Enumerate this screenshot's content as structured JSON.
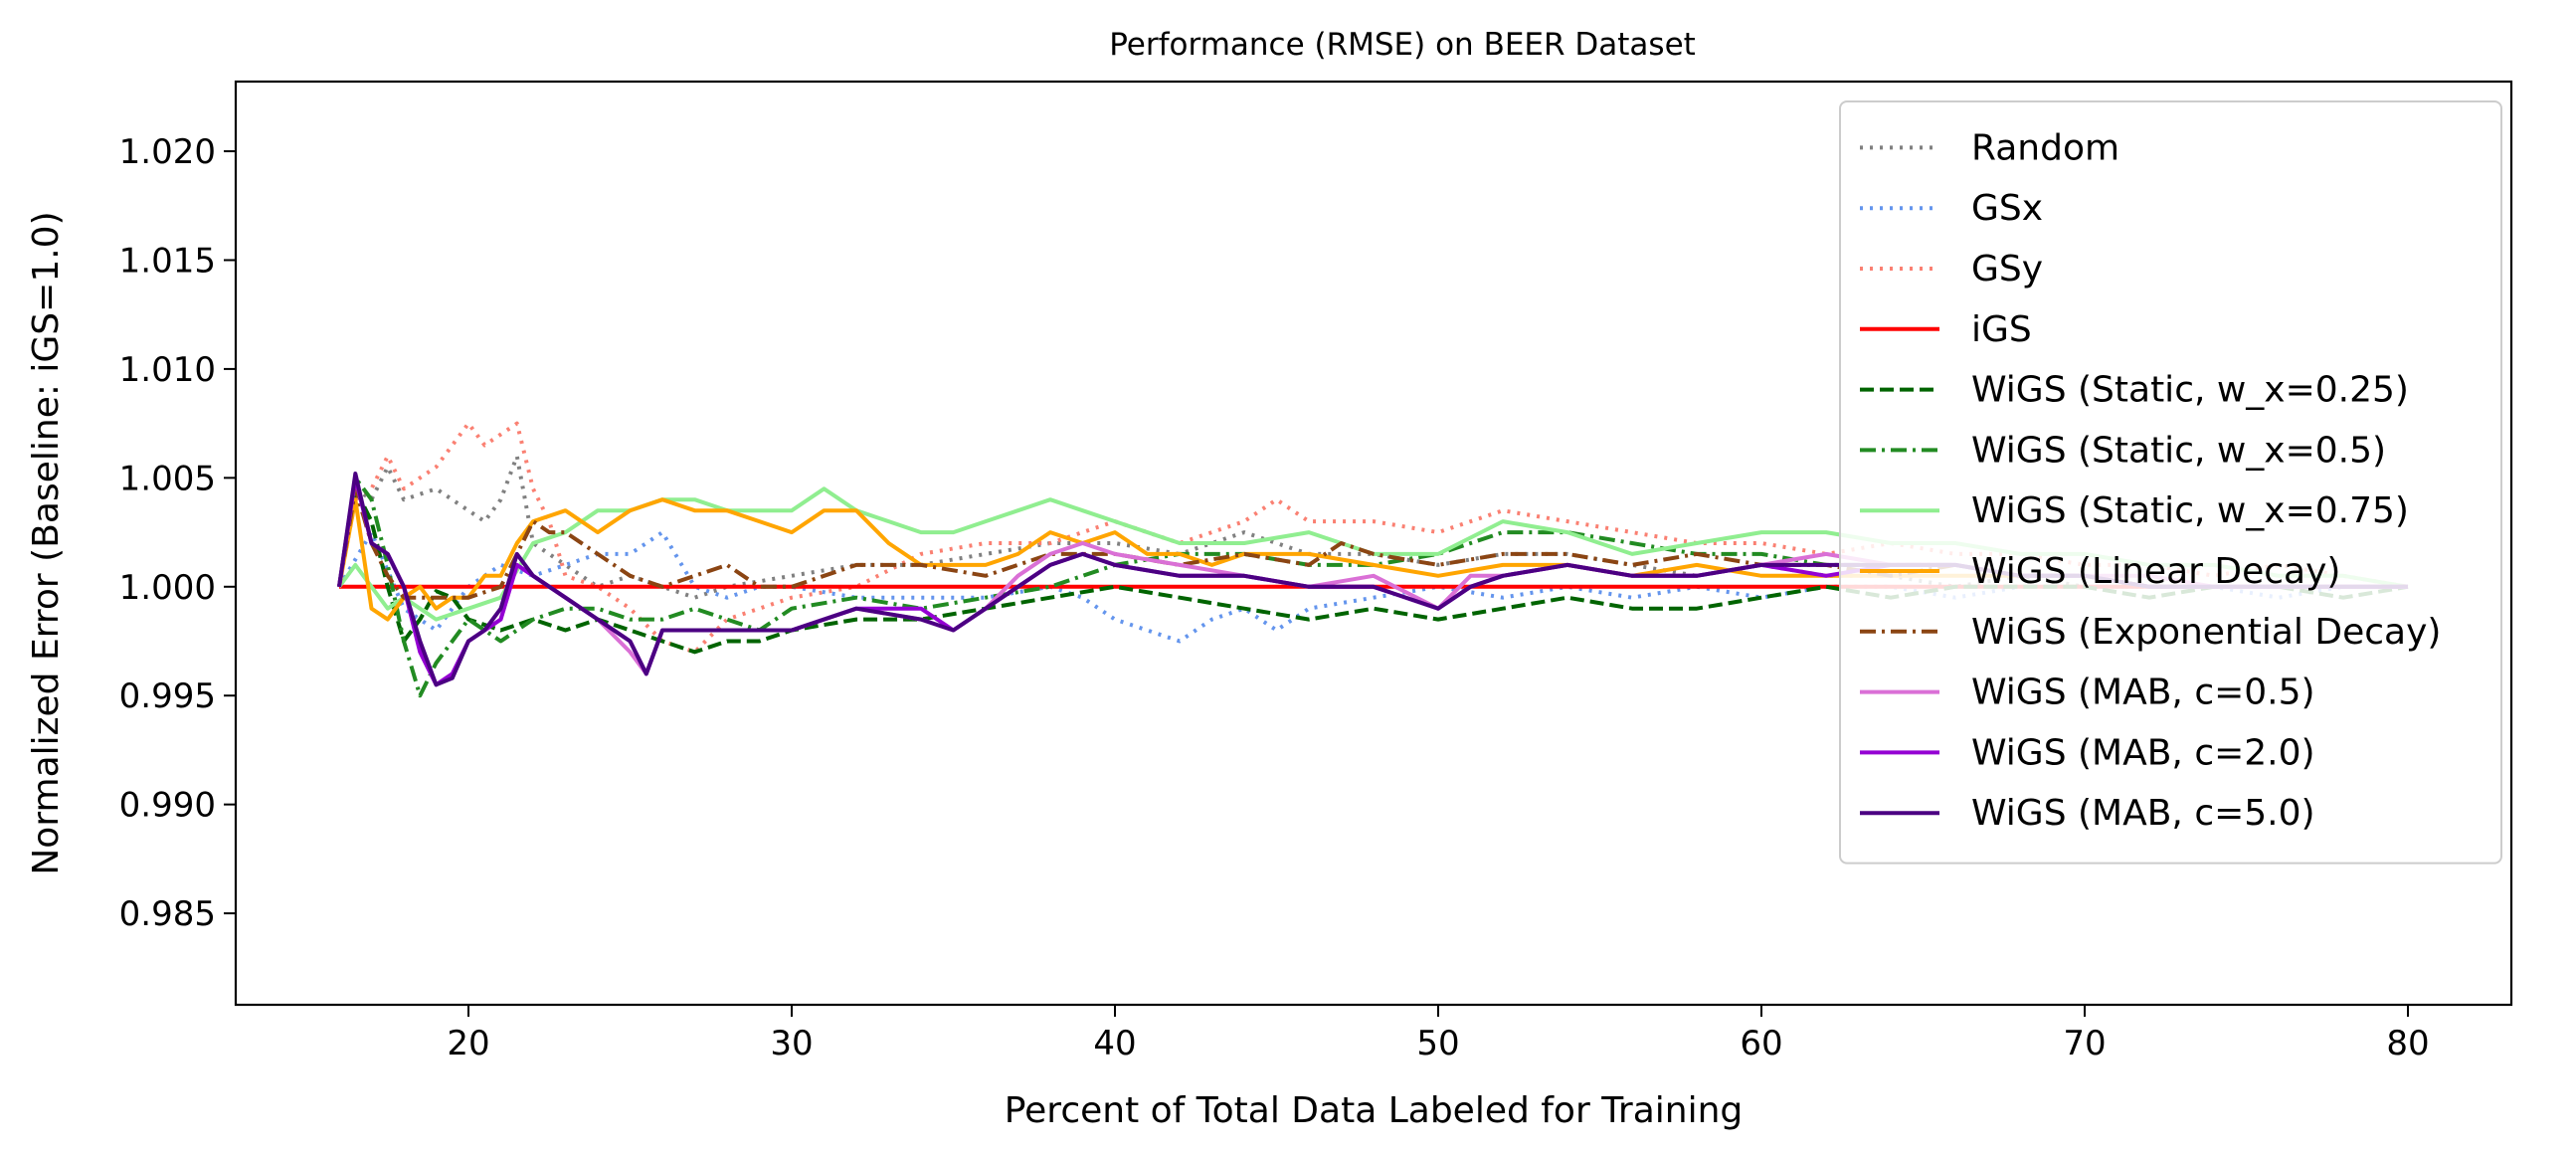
{
  "chart_data": {
    "type": "line",
    "title": "Performance (RMSE) on BEER Dataset",
    "xlabel": "Percent of Total Data Labeled for Training",
    "ylabel": "Normalized Error (Baseline: iGS=1.0)",
    "xlim": [
      12.8,
      83.2
    ],
    "ylim": [
      0.9808,
      1.0232
    ],
    "xticks": [
      20,
      30,
      40,
      50,
      60,
      70,
      80
    ],
    "xtick_labels": [
      "20",
      "30",
      "40",
      "50",
      "60",
      "70",
      "80"
    ],
    "yticks": [
      0.985,
      0.99,
      0.995,
      1.0,
      1.005,
      1.01,
      1.015,
      1.02
    ],
    "ytick_labels": [
      "0.985",
      "0.990",
      "0.995",
      "1.000",
      "1.005",
      "1.010",
      "1.015",
      "1.020"
    ],
    "grid": false,
    "legend_position": "upper-right",
    "series": [
      {
        "name": "Random",
        "color": "#808080",
        "dash": "dotted",
        "x": [
          16,
          16.5,
          17,
          17.5,
          18,
          19,
          20,
          20.5,
          21,
          21.5,
          22,
          23,
          24,
          25,
          26,
          27,
          28,
          30,
          32,
          34,
          36,
          38,
          40,
          42,
          44,
          46,
          48,
          50,
          52,
          54,
          56,
          58,
          60,
          62,
          64,
          66,
          68,
          70,
          72,
          74,
          76,
          78,
          80
        ],
        "y": [
          1.0,
          1.0045,
          1.004,
          1.0055,
          1.004,
          1.0045,
          1.0035,
          1.003,
          1.004,
          1.006,
          1.002,
          1.001,
          1.0,
          1.0005,
          1.0,
          0.9995,
          1.0,
          1.0005,
          1.001,
          1.001,
          1.0015,
          1.002,
          1.002,
          1.0015,
          1.0025,
          1.0015,
          1.0015,
          1.001,
          1.0015,
          1.0015,
          1.001,
          1.0005,
          1.001,
          1.0005,
          1.0005,
          1.0,
          1.0005,
          1.0,
          1.0,
          1.0,
          1.0,
          1.0,
          1.0
        ]
      },
      {
        "name": "GSx",
        "color": "#6495ED",
        "dash": "dotted",
        "x": [
          16,
          17,
          18,
          19,
          20,
          21,
          22,
          23,
          24,
          25,
          26,
          27,
          28,
          29,
          30,
          32,
          34,
          36,
          38,
          39,
          40,
          41,
          42,
          43,
          44,
          45,
          46,
          48,
          50,
          52,
          54,
          56,
          58,
          60,
          62,
          64,
          66,
          68,
          70,
          72,
          74,
          76,
          78,
          80
        ],
        "y": [
          1.0,
          1.0025,
          0.999,
          0.998,
          1.0,
          1.001,
          1.0005,
          1.001,
          1.0015,
          1.0015,
          1.0025,
          1.0,
          0.9995,
          1.0,
          1.0,
          0.9995,
          0.9995,
          0.9995,
          1.0,
          0.9995,
          0.9985,
          0.998,
          0.9975,
          0.9985,
          0.999,
          0.998,
          0.999,
          0.9995,
          1.0,
          0.9995,
          1.0,
          0.9995,
          1.0,
          0.9995,
          1.0,
          1.0,
          0.9995,
          1.0,
          1.0,
          1.0,
          1.0,
          0.9995,
          1.0,
          1.0
        ]
      },
      {
        "name": "GSy",
        "color": "#FA8072",
        "dash": "dotted",
        "x": [
          16,
          16.5,
          17,
          17.5,
          18,
          19,
          19.5,
          20,
          20.5,
          21,
          21.5,
          22,
          22.5,
          23,
          24,
          25,
          26,
          27,
          28,
          30,
          32,
          34,
          36,
          38,
          40,
          42,
          44,
          45,
          46,
          48,
          50,
          52,
          54,
          56,
          58,
          60,
          62,
          64,
          66,
          68,
          70,
          72,
          74,
          76,
          78,
          80
        ],
        "y": [
          1.0,
          1.004,
          1.0045,
          1.006,
          1.0045,
          1.0055,
          1.0065,
          1.0075,
          1.0065,
          1.007,
          1.0075,
          1.0045,
          1.003,
          1.0005,
          1.0,
          0.999,
          0.9975,
          0.997,
          0.9985,
          0.9995,
          1.0,
          1.0015,
          1.002,
          1.002,
          1.003,
          1.002,
          1.003,
          1.004,
          1.003,
          1.003,
          1.0025,
          1.0035,
          1.003,
          1.0025,
          1.002,
          1.002,
          1.0015,
          1.002,
          1.0015,
          1.0015,
          1.001,
          1.001,
          1.0005,
          1.001,
          1.0005,
          1.0
        ]
      },
      {
        "name": "iGS",
        "color": "#FF0000",
        "dash": "solid",
        "x": [
          16,
          80
        ],
        "y": [
          1.0,
          1.0
        ]
      },
      {
        "name": "WiGS (Static, w_x=0.25)",
        "color": "#006400",
        "dash": "dashed",
        "x": [
          16,
          16.5,
          17,
          17.5,
          18,
          18.5,
          19,
          19.5,
          20,
          21,
          22,
          23,
          24,
          25,
          26,
          27,
          28,
          29,
          30,
          32,
          34,
          36,
          38,
          40,
          42,
          44,
          46,
          48,
          50,
          52,
          54,
          56,
          58,
          60,
          62,
          64,
          66,
          68,
          70,
          72,
          74,
          76,
          78,
          80
        ],
        "y": [
          1.0,
          1.0045,
          1.003,
          1.0,
          0.9975,
          0.9985,
          0.9998,
          0.9995,
          0.9985,
          0.998,
          0.9985,
          0.998,
          0.9985,
          0.998,
          0.9975,
          0.997,
          0.9975,
          0.9975,
          0.998,
          0.9985,
          0.9985,
          0.999,
          0.9995,
          1.0,
          0.9995,
          0.999,
          0.9985,
          0.999,
          0.9985,
          0.999,
          0.9995,
          0.999,
          0.999,
          0.9995,
          1.0,
          0.9995,
          1.0,
          1.0,
          1.0,
          0.9995,
          1.0,
          1.0,
          0.9995,
          1.0
        ]
      },
      {
        "name": "WiGS (Static, w_x=0.5)",
        "color": "#228B22",
        "dash": "dashdot",
        "x": [
          16,
          16.5,
          17,
          17.5,
          18,
          18.5,
          19,
          20,
          21,
          22,
          23,
          24,
          25,
          26,
          27,
          28,
          29,
          30,
          32,
          34,
          36,
          38,
          40,
          42,
          44,
          46,
          48,
          50,
          52,
          54,
          56,
          58,
          60,
          62,
          64,
          66,
          68,
          70,
          72,
          74,
          76,
          78,
          80
        ],
        "y": [
          1.0,
          1.005,
          1.004,
          1.001,
          0.9975,
          0.995,
          0.9965,
          0.9985,
          0.9975,
          0.9985,
          0.999,
          0.999,
          0.9985,
          0.9985,
          0.999,
          0.9985,
          0.998,
          0.999,
          0.9995,
          0.999,
          0.9995,
          1.0,
          1.001,
          1.0015,
          1.0015,
          1.001,
          1.001,
          1.0015,
          1.0025,
          1.0025,
          1.002,
          1.0015,
          1.0015,
          1.001,
          1.001,
          1.001,
          1.0005,
          1.0005,
          1.0,
          1.0,
          1.0,
          1.0,
          1.0
        ]
      },
      {
        "name": "WiGS (Static, w_x=0.75)",
        "color": "#90EE90",
        "dash": "solid",
        "x": [
          16,
          16.5,
          17,
          17.5,
          18,
          19,
          20,
          21,
          22,
          23,
          24,
          25,
          26,
          27,
          28,
          29,
          30,
          31,
          32,
          33,
          34,
          35,
          36,
          37,
          38,
          39,
          40,
          42,
          44,
          46,
          48,
          50,
          52,
          54,
          56,
          58,
          60,
          62,
          64,
          66,
          68,
          70,
          72,
          74,
          76,
          78,
          80
        ],
        "y": [
          1.0,
          1.001,
          1.0,
          0.999,
          0.9995,
          0.9985,
          0.999,
          0.9995,
          1.002,
          1.0025,
          1.0035,
          1.0035,
          1.004,
          1.004,
          1.0035,
          1.0035,
          1.0035,
          1.0045,
          1.0035,
          1.003,
          1.0025,
          1.0025,
          1.003,
          1.0035,
          1.004,
          1.0035,
          1.003,
          1.002,
          1.002,
          1.0025,
          1.0015,
          1.0015,
          1.003,
          1.0025,
          1.0015,
          1.002,
          1.0025,
          1.0025,
          1.002,
          1.002,
          1.0015,
          1.0015,
          1.001,
          1.001,
          1.0005,
          1.0005,
          1.0
        ]
      },
      {
        "name": "WiGS (Linear Decay)",
        "color": "#FFA500",
        "dash": "solid",
        "x": [
          16,
          16.5,
          17,
          17.5,
          18,
          18.5,
          19,
          19.5,
          20,
          20.5,
          21,
          21.5,
          22,
          23,
          24,
          25,
          26,
          27,
          28,
          29,
          30,
          31,
          32,
          33,
          34,
          35,
          36,
          37,
          38,
          39,
          40,
          41,
          42,
          43,
          44,
          45,
          46,
          48,
          50,
          52,
          54,
          56,
          58,
          60,
          62,
          64,
          66,
          68,
          70,
          72,
          74,
          76,
          78,
          80
        ],
        "y": [
          1.0,
          1.004,
          0.999,
          0.9985,
          0.9995,
          1.0,
          0.999,
          0.9995,
          0.9995,
          1.0005,
          1.0005,
          1.002,
          1.003,
          1.0035,
          1.0025,
          1.0035,
          1.004,
          1.0035,
          1.0035,
          1.003,
          1.0025,
          1.0035,
          1.0035,
          1.002,
          1.001,
          1.001,
          1.001,
          1.0015,
          1.0025,
          1.002,
          1.0025,
          1.0015,
          1.0015,
          1.001,
          1.0015,
          1.0015,
          1.0015,
          1.001,
          1.0005,
          1.001,
          1.001,
          1.0005,
          1.001,
          1.0005,
          1.0005,
          1.0005,
          1.0005,
          1.0005,
          1.0005,
          1.0,
          1.0,
          1.0,
          1.0,
          1.0
        ]
      },
      {
        "name": "WiGS (Exponential Decay)",
        "color": "#8B4513",
        "dash": "dashdot",
        "x": [
          16,
          16.5,
          17,
          17.5,
          18,
          19,
          20,
          21,
          22,
          22.5,
          23,
          24,
          25,
          26,
          27,
          28,
          29,
          30,
          32,
          34,
          36,
          38,
          40,
          42,
          44,
          46,
          47,
          48,
          50,
          52,
          54,
          56,
          58,
          60,
          62,
          64,
          66,
          68,
          70,
          72,
          74,
          76,
          78,
          80
        ],
        "y": [
          1.0,
          1.0045,
          1.002,
          1.0005,
          0.9995,
          0.9995,
          0.9995,
          1.0,
          1.003,
          1.0025,
          1.0025,
          1.0015,
          1.0005,
          1.0,
          1.0005,
          1.001,
          1.0,
          1.0,
          1.001,
          1.001,
          1.0005,
          1.0015,
          1.0015,
          1.001,
          1.0015,
          1.001,
          1.002,
          1.0015,
          1.001,
          1.0015,
          1.0015,
          1.001,
          1.0015,
          1.001,
          1.001,
          1.0005,
          1.001,
          1.0005,
          1.0005,
          1.0,
          1.0,
          1.0,
          1.0,
          1.0
        ]
      },
      {
        "name": "WiGS (MAB, c=0.5)",
        "color": "#DA70D6",
        "dash": "solid",
        "x": [
          16,
          16.5,
          17,
          17.5,
          18,
          18.5,
          19,
          19.5,
          20,
          21,
          21.5,
          22,
          23,
          24,
          25,
          25.5,
          26,
          27,
          28,
          29,
          30,
          32,
          34,
          35,
          36,
          37,
          38,
          39,
          40,
          42,
          44,
          46,
          48,
          50,
          51,
          52,
          54,
          56,
          58,
          60,
          62,
          64,
          66,
          68,
          70,
          72,
          74,
          76,
          78,
          80
        ],
        "y": [
          1.0,
          1.005,
          1.002,
          1.0015,
          1.0,
          0.997,
          0.9955,
          0.996,
          0.9975,
          0.9985,
          1.001,
          1.0005,
          0.9995,
          0.9985,
          0.997,
          0.996,
          0.998,
          0.998,
          0.998,
          0.998,
          0.998,
          0.999,
          0.9985,
          0.998,
          0.999,
          1.0005,
          1.0015,
          1.002,
          1.0015,
          1.001,
          1.0005,
          1.0,
          1.0005,
          0.999,
          1.0005,
          1.0005,
          1.001,
          1.0005,
          1.0005,
          1.001,
          1.0015,
          1.001,
          1.001,
          1.0005,
          1.0005,
          1.0005,
          1.0,
          1.0,
          1.0,
          1.0
        ]
      },
      {
        "name": "WiGS (MAB, c=2.0)",
        "color": "#9400D3",
        "dash": "solid",
        "x": [
          16,
          16.5,
          17,
          17.5,
          18,
          18.5,
          19,
          19.5,
          20,
          21,
          21.5,
          22,
          23,
          24,
          25,
          25.5,
          26,
          27,
          28,
          29,
          30,
          32,
          34,
          35,
          36,
          37,
          38,
          39,
          40,
          42,
          44,
          46,
          48,
          50,
          51,
          52,
          54,
          56,
          58,
          60,
          62,
          64,
          66,
          68,
          70,
          72,
          74,
          76,
          78,
          80
        ],
        "y": [
          1.0,
          1.005,
          1.002,
          1.0015,
          1.0,
          0.997,
          0.9955,
          0.996,
          0.9975,
          0.9985,
          1.001,
          1.0005,
          0.9995,
          0.9985,
          0.9975,
          0.996,
          0.998,
          0.998,
          0.998,
          0.998,
          0.998,
          0.999,
          0.999,
          0.998,
          0.999,
          1.0,
          1.001,
          1.0015,
          1.001,
          1.0005,
          1.0005,
          1.0,
          1.0,
          0.999,
          1.0,
          1.0005,
          1.001,
          1.0005,
          1.0005,
          1.001,
          1.0005,
          1.001,
          1.001,
          1.0005,
          1.0005,
          1.0,
          1.0,
          1.0,
          1.0,
          1.0
        ]
      },
      {
        "name": "WiGS (MAB, c=5.0)",
        "color": "#4B0082",
        "dash": "solid",
        "x": [
          16,
          16.5,
          17,
          17.5,
          18,
          18.5,
          19,
          19.5,
          20,
          20.5,
          21,
          21.5,
          22,
          23,
          24,
          25,
          25.5,
          26,
          27,
          28,
          29,
          30,
          32,
          34,
          35,
          36,
          37,
          38,
          39,
          40,
          42,
          44,
          46,
          48,
          50,
          51,
          52,
          54,
          56,
          58,
          60,
          62,
          64,
          66,
          68,
          70,
          72,
          74,
          76,
          78,
          80
        ],
        "y": [
          1.0,
          1.0052,
          1.002,
          1.0015,
          1.0,
          0.9975,
          0.9955,
          0.9958,
          0.9975,
          0.998,
          0.999,
          1.0015,
          1.0005,
          0.9995,
          0.9985,
          0.9975,
          0.996,
          0.998,
          0.998,
          0.998,
          0.998,
          0.998,
          0.999,
          0.9985,
          0.998,
          0.999,
          1.0,
          1.001,
          1.0015,
          1.001,
          1.0005,
          1.0005,
          1.0,
          1.0,
          0.999,
          1.0,
          1.0005,
          1.001,
          1.0005,
          1.0005,
          1.001,
          1.001,
          1.001,
          1.001,
          1.0005,
          1.0005,
          1.0,
          1.0,
          1.0,
          1.0,
          1.0
        ]
      }
    ]
  }
}
